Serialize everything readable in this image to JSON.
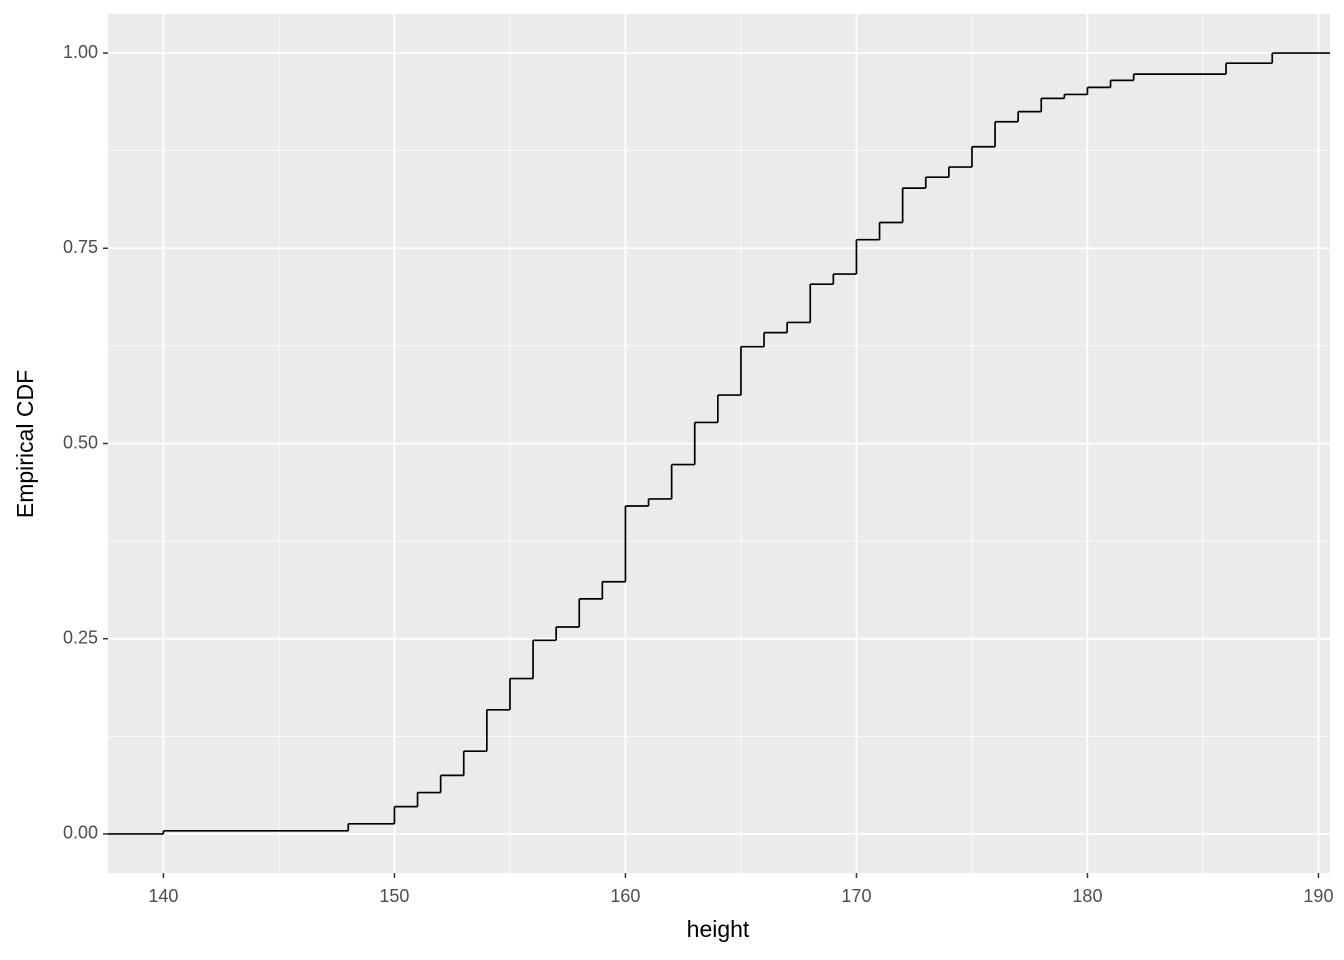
{
  "chart_data": {
    "type": "step",
    "x_label": "height",
    "y_label": "Empirical CDF",
    "x": [
      140,
      148,
      150,
      151,
      152,
      153,
      154,
      155,
      156,
      157,
      158,
      159,
      160,
      161,
      162,
      163,
      164,
      165,
      166,
      167,
      168,
      169,
      170,
      171,
      172,
      173,
      174,
      175,
      176,
      177,
      178,
      179,
      180,
      181,
      182,
      186,
      188
    ],
    "values": [
      0.004,
      0.013,
      0.035,
      0.053,
      0.075,
      0.106,
      0.159,
      0.199,
      0.248,
      0.265,
      0.301,
      0.323,
      0.42,
      0.429,
      0.473,
      0.527,
      0.562,
      0.624,
      0.642,
      0.655,
      0.704,
      0.717,
      0.761,
      0.783,
      0.827,
      0.841,
      0.854,
      0.88,
      0.912,
      0.925,
      0.942,
      0.947,
      0.956,
      0.965,
      0.973,
      0.987,
      1.0
    ],
    "color": "#000000",
    "xlim": [
      137.6,
      190.5
    ],
    "ylim": [
      -0.05,
      1.05
    ],
    "xticks": [
      140,
      150,
      160,
      170,
      180,
      190
    ],
    "yticks": [
      {
        "value": 0,
        "label": "0.00"
      },
      {
        "value": 0.25,
        "label": "0.25"
      },
      {
        "value": 0.5,
        "label": "0.50"
      },
      {
        "value": 0.75,
        "label": "0.75"
      },
      {
        "value": 1,
        "label": "1.00"
      }
    ],
    "grid": true
  }
}
